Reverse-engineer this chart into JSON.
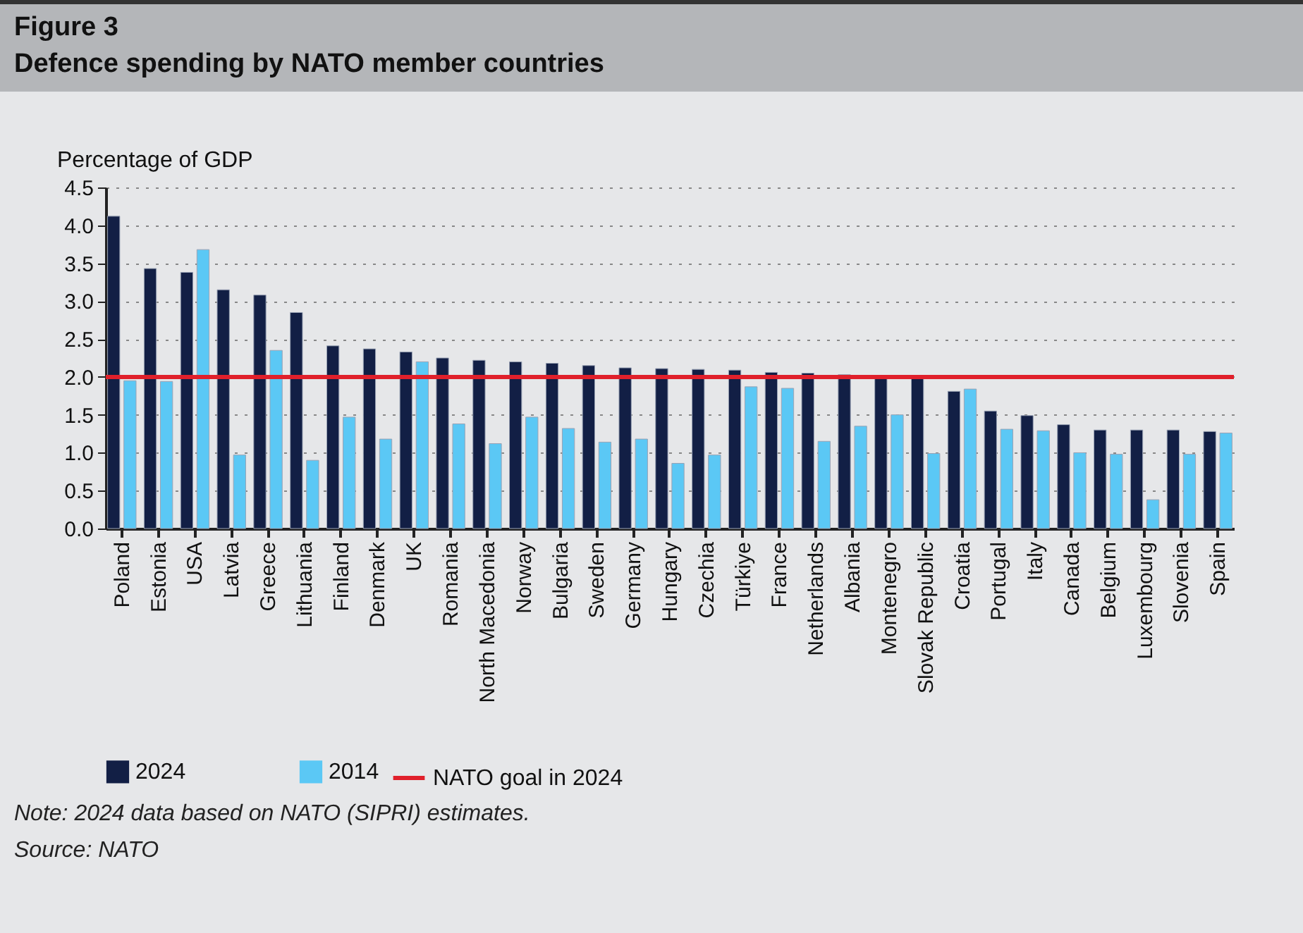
{
  "chart_data": {
    "type": "bar",
    "title": "Figure 3",
    "subtitle": "Defence spending by NATO member countries",
    "ylabel": "Percentage of GDP",
    "categories": [
      "Poland",
      "Estonia",
      "USA",
      "Latvia",
      "Greece",
      "Lithuania",
      "Finland",
      "Denmark",
      "UK",
      "Romania",
      "North Macedonia",
      "Norway",
      "Bulgaria",
      "Sweden",
      "Germany",
      "Hungary",
      "Czechia",
      "Türkiye",
      "France",
      "Netherlands",
      "Albania",
      "Montenegro",
      "Slovak Republic",
      "Croatia",
      "Portugal",
      "Italy",
      "Canada",
      "Belgium",
      "Luxembourg",
      "Slovenia",
      "Spain"
    ],
    "series": [
      {
        "name": "2024",
        "color": "#121f45",
        "values": [
          4.12,
          3.43,
          3.38,
          3.15,
          3.08,
          2.85,
          2.41,
          2.37,
          2.33,
          2.25,
          2.22,
          2.2,
          2.18,
          2.15,
          2.12,
          2.11,
          2.1,
          2.09,
          2.06,
          2.05,
          2.03,
          2.02,
          2.0,
          1.81,
          1.55,
          1.49,
          1.37,
          1.3,
          1.3,
          1.3,
          1.28
        ]
      },
      {
        "name": "2014",
        "color": "#5bc8f5",
        "values": [
          1.95,
          1.94,
          3.68,
          0.97,
          2.35,
          0.9,
          1.47,
          1.18,
          2.2,
          1.38,
          1.12,
          1.47,
          1.32,
          1.14,
          1.18,
          0.86,
          0.97,
          1.87,
          1.85,
          1.15,
          1.35,
          1.5,
          0.99,
          1.84,
          1.31,
          1.29,
          1.0,
          0.98,
          0.38,
          0.98,
          1.26
        ]
      }
    ],
    "ylim": [
      0,
      4.5
    ],
    "yticks": [
      {
        "value": 0,
        "label": "0.0"
      },
      {
        "value": 0.5,
        "label": "0.5"
      },
      {
        "value": 1,
        "label": "1.0"
      },
      {
        "value": 1.5,
        "label": "1.5"
      },
      {
        "value": 2,
        "label": "2.0"
      },
      {
        "value": 2.5,
        "label": "2.5"
      },
      {
        "value": 3,
        "label": "3.0"
      },
      {
        "value": 3.5,
        "label": "3.5"
      },
      {
        "value": 4,
        "label": "4.0"
      },
      {
        "value": 4.5,
        "label": "4.5"
      }
    ],
    "ref_lines": [
      {
        "axis": "y",
        "value": 2,
        "label": "NATO goal in 2024",
        "color": "#e0202b"
      }
    ],
    "grid": "y",
    "legend": "bottom",
    "annotations": [
      "Note: 2024 data based on NATO (SIPRI) estimates.",
      "Source: NATO"
    ]
  }
}
